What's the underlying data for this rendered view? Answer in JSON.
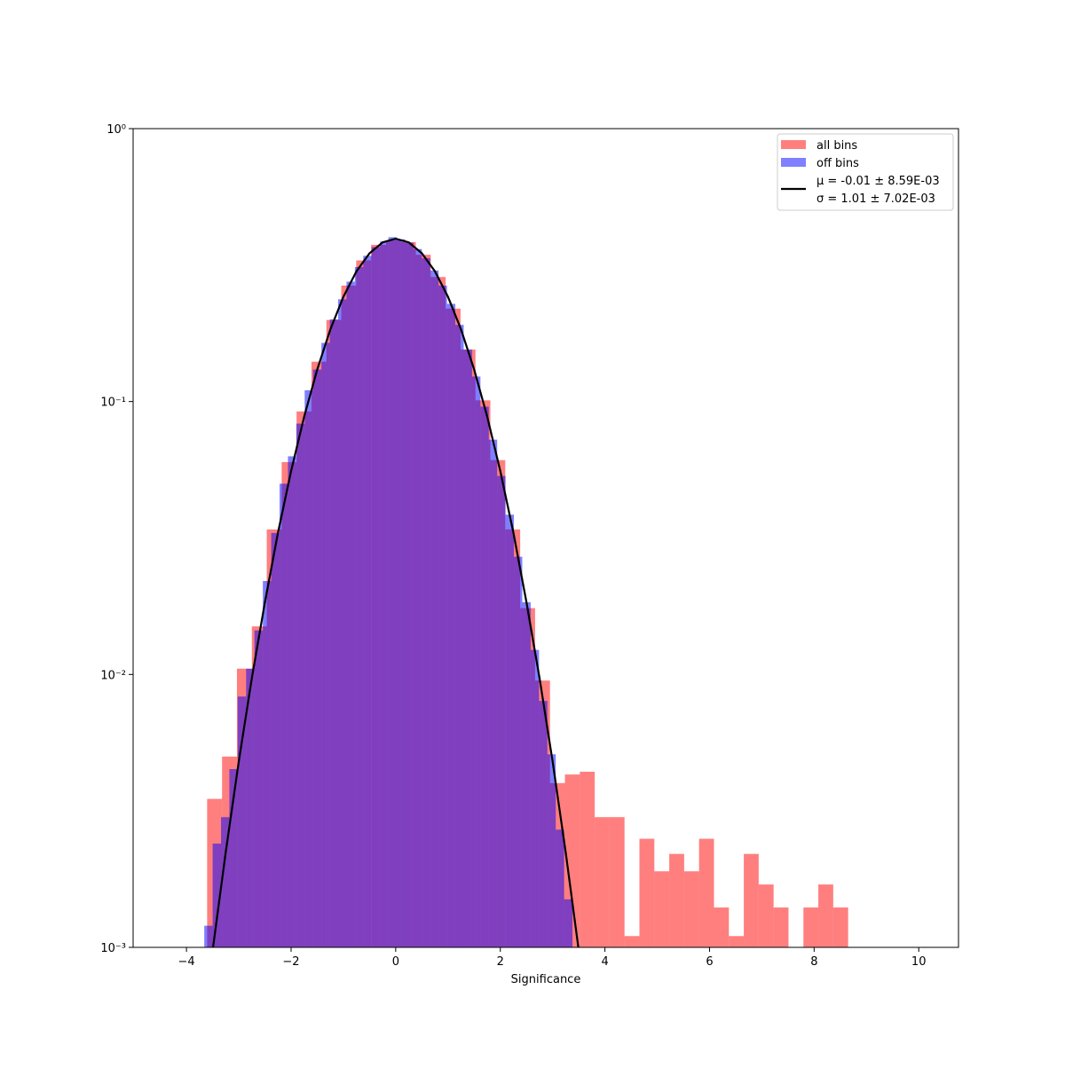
{
  "chart_data": {
    "type": "histogram",
    "xlabel": "Significance",
    "xlim": [
      -5.02,
      10.76
    ],
    "ylim": [
      0.001,
      1
    ],
    "yscale": "log",
    "xticks": [
      {
        "value": -4,
        "label": "−4"
      },
      {
        "value": -2,
        "label": "−2"
      },
      0,
      2,
      4,
      6,
      8,
      10
    ],
    "yticks": [
      {
        "value": 0.001,
        "label": "10⁻³"
      },
      {
        "value": 0.01,
        "label": "10⁻²"
      },
      {
        "value": 0.1,
        "label": "10⁻¹"
      },
      {
        "value": 1,
        "label": "10⁰"
      }
    ],
    "legend": "upper right",
    "series": [
      {
        "name": "all bins",
        "type": "hist",
        "color": "#ff0000",
        "alpha": 0.5,
        "bins": [
          -3.605,
          -3.32,
          -3.035,
          -2.75,
          -2.465,
          -2.18,
          -1.895,
          -1.61,
          -1.325,
          -1.04,
          -0.755,
          -0.47,
          -0.185,
          0.1,
          0.385,
          0.67,
          0.955,
          1.24,
          1.525,
          1.81,
          2.095,
          2.38,
          2.665,
          2.95,
          3.235,
          3.52,
          3.805,
          4.09,
          4.375,
          4.66,
          4.945,
          5.23,
          5.515,
          5.8,
          6.085,
          6.37,
          6.655,
          6.94,
          7.225,
          7.51,
          7.795,
          8.08,
          8.365,
          8.65
        ],
        "values": [
          0.0035,
          0.005,
          0.0105,
          0.015,
          0.034,
          0.06,
          0.092,
          0.14,
          0.199,
          0.266,
          0.329,
          0.375,
          0.39,
          0.384,
          0.345,
          0.286,
          0.219,
          0.155,
          0.101,
          0.061,
          0.034,
          0.0175,
          0.0095,
          0.004,
          0.0043,
          0.0044,
          0.003,
          0.003,
          0.0011,
          0.0025,
          0.0019,
          0.0022,
          0.0019,
          0.0025,
          0.0014,
          0.0011,
          0.0022,
          0.0017,
          0.0014,
          0,
          0.0014,
          0.0017,
          0.0014
        ]
      },
      {
        "name": "off bins",
        "type": "hist",
        "color": "#0000ff",
        "alpha": 0.5,
        "bins": [
          -3.66,
          -3.5,
          -3.34,
          -3.18,
          -3.02,
          -2.86,
          -2.7,
          -2.54,
          -2.38,
          -2.22,
          -2.06,
          -1.9,
          -1.74,
          -1.58,
          -1.42,
          -1.26,
          -1.1,
          -0.94,
          -0.78,
          -0.62,
          -0.46,
          -0.3,
          -0.14,
          0.02,
          0.18,
          0.34,
          0.5,
          0.66,
          0.82,
          0.98,
          1.14,
          1.3,
          1.46,
          1.62,
          1.78,
          1.94,
          2.1,
          2.26,
          2.42,
          2.58,
          2.74,
          2.9,
          3.06,
          3.22,
          3.38
        ],
        "values": [
          0.0012,
          0.0024,
          0.003,
          0.0045,
          0.0083,
          0.0105,
          0.0145,
          0.022,
          0.033,
          0.05,
          0.063,
          0.083,
          0.11,
          0.131,
          0.164,
          0.2,
          0.237,
          0.275,
          0.311,
          0.342,
          0.368,
          0.386,
          0.4,
          0.393,
          0.382,
          0.362,
          0.335,
          0.302,
          0.266,
          0.228,
          0.191,
          0.155,
          0.1235,
          0.0958,
          0.0725,
          0.0534,
          0.0385,
          0.027,
          0.0184,
          0.0123,
          0.008,
          0.0051,
          0.0027,
          0.0015
        ]
      },
      {
        "name": [
          "μ = -0.01 ± 8.59E-03",
          "σ = 1.01 ± 7.02E-03"
        ],
        "type": "line",
        "color": "#000000",
        "x": [
          -3.5,
          -3.25,
          -3,
          -2.75,
          -2.5,
          -2.25,
          -2,
          -1.75,
          -1.5,
          -1.25,
          -1,
          -0.75,
          -0.5,
          -0.25,
          0,
          0.25,
          0.5,
          0.75,
          1,
          1.25,
          1.5,
          1.75,
          2,
          2.25,
          2.5,
          2.75,
          3,
          3.25,
          3.5
        ],
        "values": [
          0.000974,
          0.00223,
          0.0048,
          0.0097,
          0.0184,
          0.0331,
          0.0556,
          0.088,
          0.131,
          0.1836,
          0.242,
          0.3,
          0.3495,
          0.383,
          0.395,
          0.383,
          0.3495,
          0.3,
          0.242,
          0.1836,
          0.131,
          0.088,
          0.0556,
          0.0331,
          0.0184,
          0.0097,
          0.0048,
          0.00223,
          0.000974
        ]
      }
    ]
  }
}
